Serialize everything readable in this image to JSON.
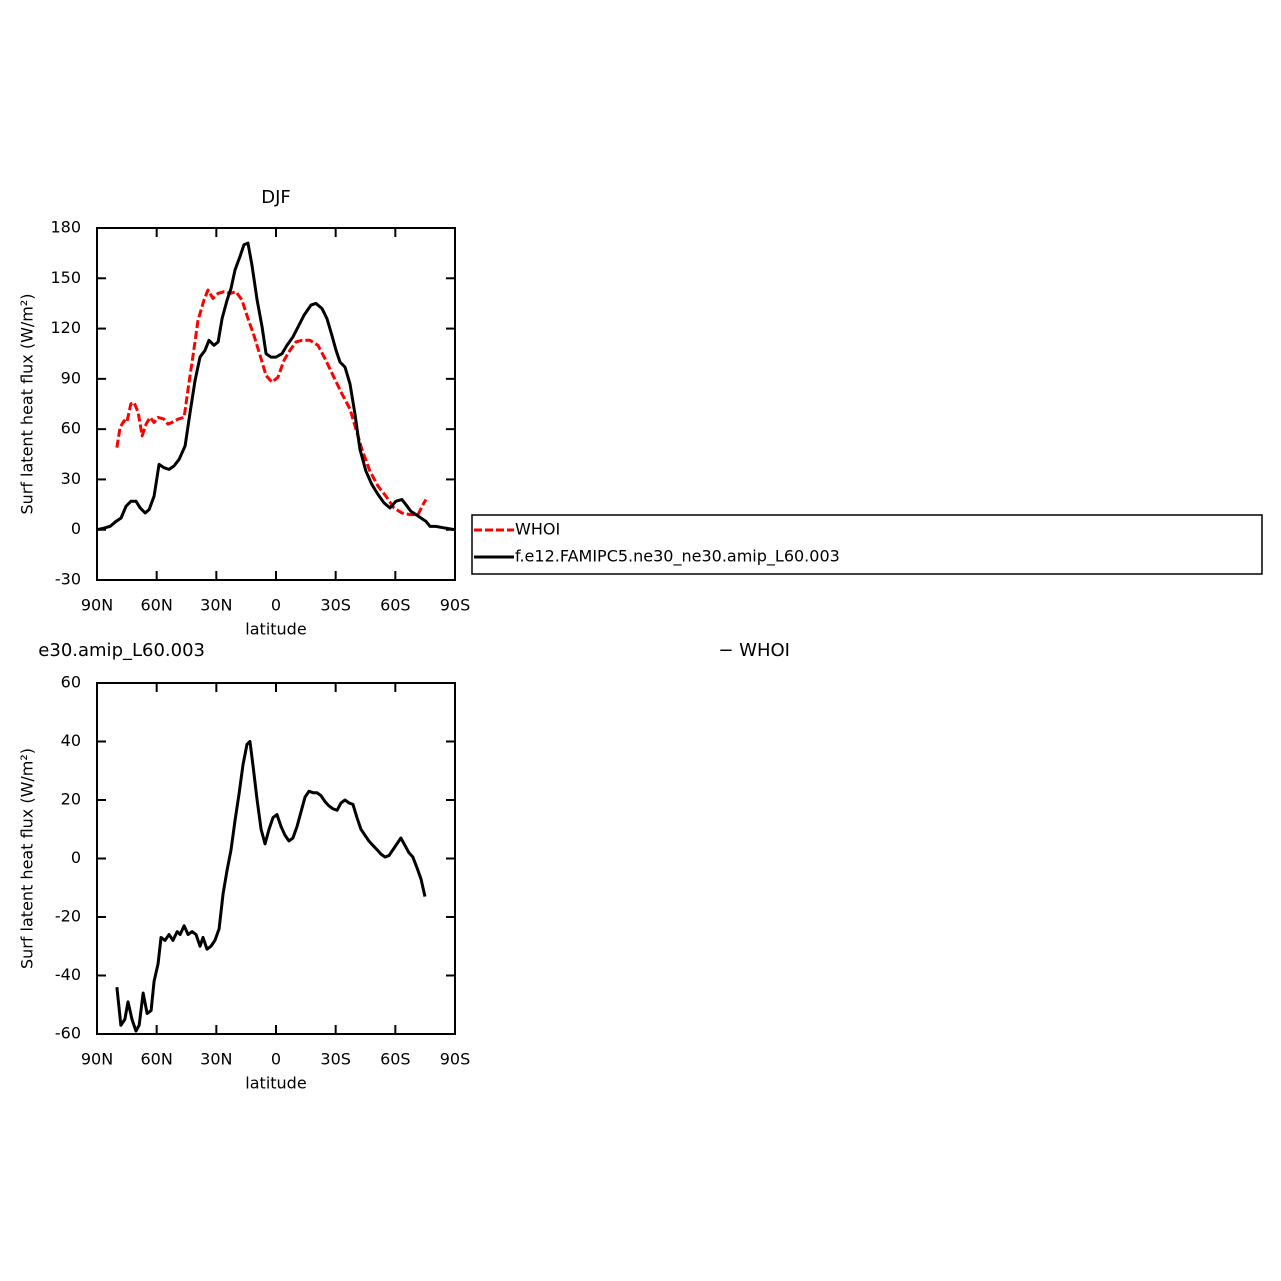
{
  "chart_data": [
    {
      "type": "line",
      "title": "DJF",
      "xlabel": "latitude",
      "ylabel": "Surf latent heat flux (W/m²)",
      "xlim": [
        90,
        -90
      ],
      "xticks": [
        {
          "value": 90,
          "label": "90N"
        },
        {
          "value": 60,
          "label": "60N"
        },
        {
          "value": 30,
          "label": "30N"
        },
        0,
        {
          "value": -30,
          "label": "30S"
        },
        {
          "value": -60,
          "label": "60S"
        },
        {
          "value": -90,
          "label": "90S"
        }
      ],
      "ylim": [
        -30,
        180
      ],
      "yticks": [
        -30,
        0,
        30,
        60,
        90,
        120,
        150,
        180
      ],
      "series": [
        {
          "name": "WHOI",
          "color": "#ff0000",
          "line_style": "dashed",
          "x": [
            80,
            78.4,
            76.4,
            75,
            73,
            71.4,
            69.3,
            67.3,
            65.3,
            63.3,
            61.3,
            59.3,
            56.3,
            54.3,
            52.3,
            49.2,
            46.2,
            44.2,
            41.7,
            39.2,
            36.2,
            34.2,
            31.7,
            29.1,
            26.1,
            23.1,
            20.1,
            17.1,
            14.1,
            11.1,
            8,
            5,
            2,
            -1,
            -4,
            -7,
            -10,
            -13.1,
            -17.1,
            -21.1,
            -25.1,
            -29.1,
            -33.2,
            -37.2,
            -40.2,
            -43.2,
            -47.2,
            -51.3,
            -55.3,
            -59.3,
            -63.3,
            -67.3,
            -71.4,
            -73.9,
            -75.4
          ],
          "values": [
            49,
            61,
            65,
            64,
            75,
            76,
            70,
            56,
            63,
            67,
            64,
            67,
            66,
            63,
            64,
            66,
            67,
            84,
            104,
            125,
            137,
            143,
            138,
            141,
            142,
            141,
            142,
            137,
            126,
            116,
            104,
            92,
            88,
            91,
            101,
            107,
            112,
            113,
            113,
            110,
            101,
            91,
            81,
            72,
            60,
            48,
            35,
            26,
            20,
            13,
            10,
            9,
            9,
            15,
            18
          ]
        },
        {
          "name": "f.e12.FAMIPC5.ne30_ne30.amip_L60.003",
          "color": "#000000",
          "line_style": "solid",
          "x": [
            90,
            86.4,
            83.4,
            80.4,
            77.9,
            75.4,
            72.9,
            70.4,
            68.3,
            65.8,
            63.8,
            61.3,
            58.8,
            56.3,
            53.8,
            51.3,
            48.7,
            45.7,
            43.2,
            40.7,
            38.2,
            35.7,
            33.7,
            31.2,
            29.1,
            27.1,
            24.6,
            22.6,
            20.6,
            18.1,
            16.1,
            14.1,
            12.1,
            9.5,
            7,
            5,
            2.5,
            0,
            -3,
            -5.5,
            -8.5,
            -11.1,
            -14.1,
            -17.6,
            -20.1,
            -23.1,
            -25.6,
            -28.1,
            -30.2,
            -32.2,
            -34.7,
            -37.2,
            -39.7,
            -42.2,
            -45.2,
            -48.2,
            -51.3,
            -54.3,
            -57.3,
            -60.3,
            -63.3,
            -65.3,
            -67.8,
            -70.4,
            -72.9,
            -75.4,
            -77.4,
            -80.4,
            -84.9,
            -90
          ],
          "values": [
            0,
            1,
            2,
            5,
            7,
            14,
            17,
            17,
            13,
            10,
            12,
            20,
            39,
            37,
            36,
            38,
            42,
            50,
            70,
            89,
            103,
            107,
            113,
            110,
            112,
            126,
            137,
            144,
            155,
            163,
            170,
            171,
            158,
            137,
            121,
            105,
            103,
            103,
            105,
            110,
            115,
            121,
            128,
            134,
            135,
            132,
            126,
            116,
            107,
            100,
            97,
            87,
            69,
            48,
            35,
            27,
            21,
            16,
            13,
            17,
            18,
            15,
            11,
            9,
            7,
            5,
            2,
            2,
            1,
            0
          ]
        }
      ]
    },
    {
      "type": "line",
      "left_title": "e30.amip_L60.003",
      "right_title": "− WHOI",
      "xlabel": "latitude",
      "ylabel": "Surf latent heat flux (W/m²)",
      "xlim": [
        90,
        -90
      ],
      "xticks": [
        {
          "value": 90,
          "label": "90N"
        },
        {
          "value": 60,
          "label": "60N"
        },
        {
          "value": 30,
          "label": "30N"
        },
        0,
        {
          "value": -30,
          "label": "30S"
        },
        {
          "value": -60,
          "label": "60S"
        },
        {
          "value": -90,
          "label": "90S"
        }
      ],
      "ylim": [
        -60,
        60
      ],
      "yticks": [
        -60,
        -40,
        -20,
        0,
        20,
        40,
        60
      ],
      "series": [
        {
          "color": "#000000",
          "line_style": "solid",
          "x": [
            80,
            78,
            76,
            74.4,
            72.4,
            70.4,
            68.8,
            66.8,
            64.8,
            62.8,
            61.3,
            59.3,
            57.8,
            55.8,
            53.8,
            51.8,
            49.7,
            48.2,
            46.2,
            44.2,
            42.2,
            40.2,
            38.2,
            36.7,
            34.7,
            32.7,
            30.7,
            28.6,
            26.6,
            24.6,
            22.6,
            20.6,
            18.6,
            16.6,
            14.6,
            13.1,
            11.6,
            9.5,
            7.5,
            5.5,
            3.5,
            1.5,
            -0.5,
            -2.5,
            -4.5,
            -6.5,
            -8.5,
            -10.6,
            -12.6,
            -14.6,
            -16.6,
            -18.6,
            -20.6,
            -22.6,
            -24.6,
            -26.6,
            -28.6,
            -30.7,
            -32.7,
            -34.7,
            -36.7,
            -38.7,
            -40.7,
            -42.7,
            -44.7,
            -46.7,
            -48.7,
            -50.8,
            -52.8,
            -54.8,
            -56.8,
            -58.8,
            -60.8,
            -62.8,
            -64.8,
            -66.8,
            -68.8,
            -70.8,
            -72.9,
            -74.9
          ],
          "values": [
            -44,
            -57,
            -55,
            -49,
            -55,
            -59,
            -57,
            -46,
            -53,
            -52,
            -42,
            -36,
            -27,
            -28,
            -26,
            -28,
            -25,
            -26,
            -23,
            -26,
            -25,
            -26,
            -30,
            -27,
            -31,
            -30,
            -28,
            -24,
            -12,
            -4,
            3,
            13,
            22,
            32,
            39,
            40,
            32,
            20,
            10,
            5,
            10,
            14,
            15,
            11,
            8,
            6,
            7,
            11,
            16,
            21,
            23,
            22.5,
            22.5,
            21.5,
            19.5,
            18,
            17,
            16.5,
            19,
            20,
            19,
            18.5,
            14,
            10,
            8,
            6,
            4.5,
            3,
            1.5,
            0.5,
            1,
            3,
            5,
            7,
            4.5,
            2,
            0.5,
            -3,
            -7,
            -13
          ]
        }
      ]
    }
  ]
}
